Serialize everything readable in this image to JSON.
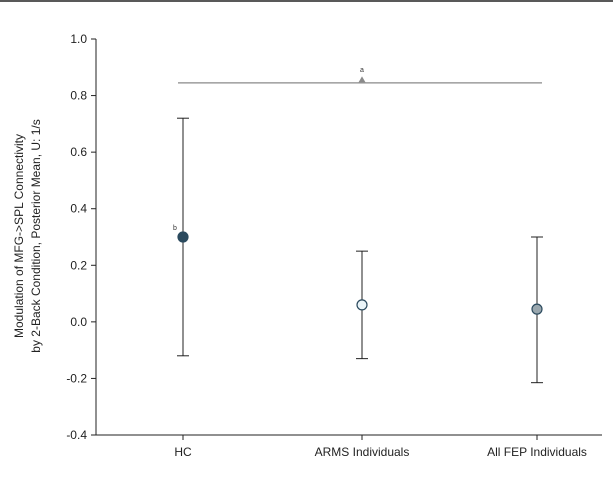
{
  "colors": {
    "frame": "#222222",
    "whisker": "#222222",
    "filled_marker": "#2b4a5e",
    "open_marker_fill": "#eaf4f8",
    "bracket": "#8a8a8a"
  },
  "chart_data": {
    "type": "scatter",
    "ylabel_line1": "Modulation of MFG->SPL Connectivity",
    "ylabel_line2": "by 2-Back Condition, Posterior Mean, U: 1/s",
    "ylim": [
      -0.4,
      1.0
    ],
    "yticks": [
      "1.0",
      "0.8",
      "0.6",
      "0.4",
      "0.2",
      "0.0",
      "-0.2",
      "-0.4"
    ],
    "ytick_values": [
      1.0,
      0.8,
      0.6,
      0.4,
      0.2,
      0.0,
      -0.2,
      -0.4
    ],
    "categories": [
      "HC",
      "ARMS Individuals",
      "All FEP Individuals"
    ],
    "points": [
      {
        "category": "HC",
        "mean": 0.3,
        "lower": -0.12,
        "upper": 0.72,
        "marker": "filled",
        "note": "b"
      },
      {
        "category": "ARMS Individuals",
        "mean": 0.06,
        "lower": -0.13,
        "upper": 0.25,
        "marker": "open",
        "note": ""
      },
      {
        "category": "All FEP Individuals",
        "mean": 0.045,
        "lower": -0.215,
        "upper": 0.3,
        "marker": "filled-light",
        "note": ""
      }
    ],
    "bracket": {
      "y": 0.845,
      "from": "HC",
      "to": "All FEP Individuals",
      "note": "a"
    },
    "grid": false
  }
}
